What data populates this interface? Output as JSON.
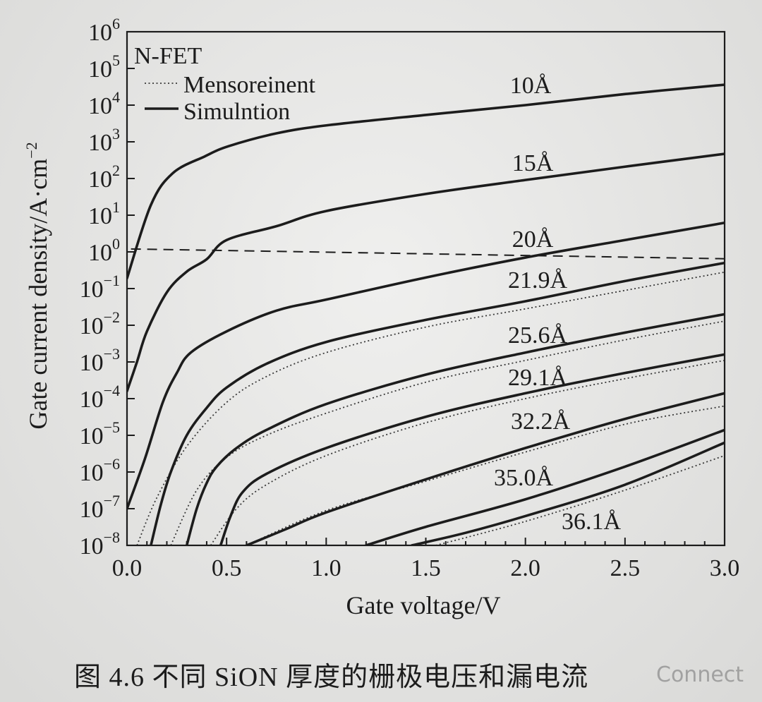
{
  "chart_data": {
    "type": "line",
    "xlabel": "Gate voltage/V",
    "ylabel": "Gate current density/A·cm",
    "ylabel_superscript": "−2",
    "xlim": [
      0,
      3
    ],
    "ylim": [
      1e-08,
      1000000.0
    ],
    "yscale": "log",
    "grid": false,
    "x_ticks": [
      "0.0",
      "0.5",
      "1.0",
      "1.5",
      "2.0",
      "2.5",
      "3.0"
    ],
    "y_tick_base": "10",
    "y_tick_exponents": [
      "6",
      "5",
      "4",
      "3",
      "2",
      "1",
      "0",
      "−1",
      "−2",
      "−3",
      "−4",
      "−5",
      "−6",
      "−7",
      "−8"
    ],
    "legend": {
      "title": "N-FET",
      "position": "top-left",
      "entries": [
        {
          "label": "Mensoreinent",
          "style": "dotted"
        },
        {
          "label": "Simulntion",
          "style": "solid"
        }
      ]
    },
    "reference_line": {
      "style": "dashed",
      "x": [
        0.02,
        3.0
      ],
      "y": [
        1.2,
        0.65
      ]
    },
    "series": [
      {
        "name": "10Å",
        "simulation": {
          "x": [
            0,
            0.12,
            0.23,
            0.39,
            0.51,
            0.75,
            1.0,
            1.5,
            2.0,
            2.5,
            3.0
          ],
          "y": [
            0.19,
            19,
            140,
            400,
            760,
            1700,
            2800,
            5400,
            10000,
            20000,
            36000
          ]
        },
        "measurement": null
      },
      {
        "name": "15Å",
        "simulation": {
          "x": [
            0,
            0.05,
            0.1,
            0.2,
            0.3,
            0.4,
            0.5,
            0.75,
            1.0,
            1.5,
            2.0,
            2.5,
            3.0
          ],
          "y": [
            0.00016,
            0.001,
            0.0068,
            0.079,
            0.29,
            0.63,
            2.1,
            5.0,
            13,
            38,
            91,
            210,
            470
          ]
        },
        "measurement": null
      },
      {
        "name": "20Å",
        "simulation": {
          "x": [
            0,
            0.09,
            0.18,
            0.25,
            0.32,
            0.5,
            0.75,
            1.0,
            1.5,
            2.0,
            2.5,
            3.0
          ],
          "y": [
            1e-07,
            2.3e-06,
            8e-05,
            0.0005,
            0.0018,
            0.0068,
            0.025,
            0.05,
            0.2,
            0.7,
            2.1,
            6.2
          ]
        },
        "measurement": null
      },
      {
        "name": "21.9Å",
        "simulation": {
          "x": [
            0.12,
            0.17,
            0.22,
            0.3,
            0.4,
            0.5,
            0.7,
            1.0,
            1.5,
            2.0,
            2.5,
            3.0
          ],
          "y": [
            1e-08,
            1.3e-07,
            1e-06,
            1e-05,
            5.6e-05,
            0.0002,
            0.00089,
            0.0035,
            0.014,
            0.045,
            0.16,
            0.5
          ]
        },
        "measurement": {
          "x": [
            0.05,
            0.15,
            0.3,
            0.5,
            0.7,
            1.0,
            1.5,
            2.0,
            2.5,
            3.0
          ],
          "y": [
            1e-08,
            2e-07,
            5e-06,
            7.9e-05,
            0.0004,
            0.0018,
            0.0089,
            0.028,
            0.089,
            0.28
          ]
        }
      },
      {
        "name": "25.6Å",
        "simulation": {
          "x": [
            0.3,
            0.35,
            0.4,
            0.45,
            0.55,
            0.7,
            1.0,
            1.5,
            2.0,
            2.5,
            3.0
          ],
          "y": [
            1e-08,
            1e-07,
            5e-07,
            1.4e-06,
            4.5e-06,
            1.4e-05,
            7.1e-05,
            0.00045,
            0.0018,
            0.0063,
            0.02
          ]
        },
        "measurement": {
          "x": [
            0.22,
            0.35,
            0.5,
            0.7,
            1.0,
            1.5,
            2.0,
            2.5,
            3.0
          ],
          "y": [
            1e-08,
            3.2e-07,
            2.5e-06,
            1e-05,
            4e-05,
            0.00028,
            0.0011,
            0.004,
            0.013
          ]
        }
      },
      {
        "name": "29.1Å",
        "simulation": {
          "x": [
            0.47,
            0.52,
            0.58,
            0.7,
            1.0,
            1.5,
            2.0,
            2.5,
            3.0
          ],
          "y": [
            1e-08,
            6.3e-08,
            2.8e-07,
            8.9e-07,
            4.5e-06,
            3.2e-05,
            0.00014,
            0.0005,
            0.0016
          ]
        },
        "measurement": {
          "x": [
            0.42,
            0.55,
            0.7,
            1.0,
            1.5,
            2.0,
            2.5,
            3.0
          ],
          "y": [
            1e-08,
            1e-07,
            4.5e-07,
            2.8e-06,
            2.2e-05,
            0.0001,
            0.00035,
            0.0011
          ]
        }
      },
      {
        "name": "32.2Å",
        "simulation": {
          "x": [
            0.6,
            0.8,
            1.0,
            1.5,
            2.0,
            2.5,
            3.0
          ],
          "y": [
            1e-08,
            2.8e-08,
            7.9e-08,
            6.3e-07,
            4.5e-06,
            2.8e-05,
            0.00014
          ]
        },
        "measurement": {
          "x": [
            0.6,
            1.0,
            1.5,
            2.0,
            2.5,
            3.0
          ],
          "y": [
            1e-08,
            8.9e-08,
            5.6e-07,
            3.5e-06,
            2e-05,
            6.3e-05
          ]
        }
      },
      {
        "name": "35.0Å",
        "simulation": {
          "x": [
            1.2,
            1.5,
            2.0,
            2.5,
            3.0
          ],
          "y": [
            1e-08,
            3.2e-08,
            1.8e-07,
            1.4e-06,
            1.4e-05
          ]
        },
        "measurement": null
      },
      {
        "name": "36.1Å",
        "simulation": {
          "x": [
            1.43,
            1.7,
            2.0,
            2.5,
            3.0
          ],
          "y": [
            1e-08,
            2.2e-08,
            6.3e-08,
            4.5e-07,
            6.3e-06
          ]
        },
        "measurement": {
          "x": [
            1.55,
            2.0,
            2.5,
            3.0
          ],
          "y": [
            1e-08,
            4.5e-08,
            3.2e-07,
            2.8e-06
          ]
        }
      }
    ]
  },
  "caption": "图 4.6   不同 SiON 厚度的栅极电压和漏电流",
  "watermark": "Connect",
  "colors": {
    "paper": "#e7e7e5",
    "ink": "#1c1c1c",
    "dotted": "#3a3a3a"
  }
}
